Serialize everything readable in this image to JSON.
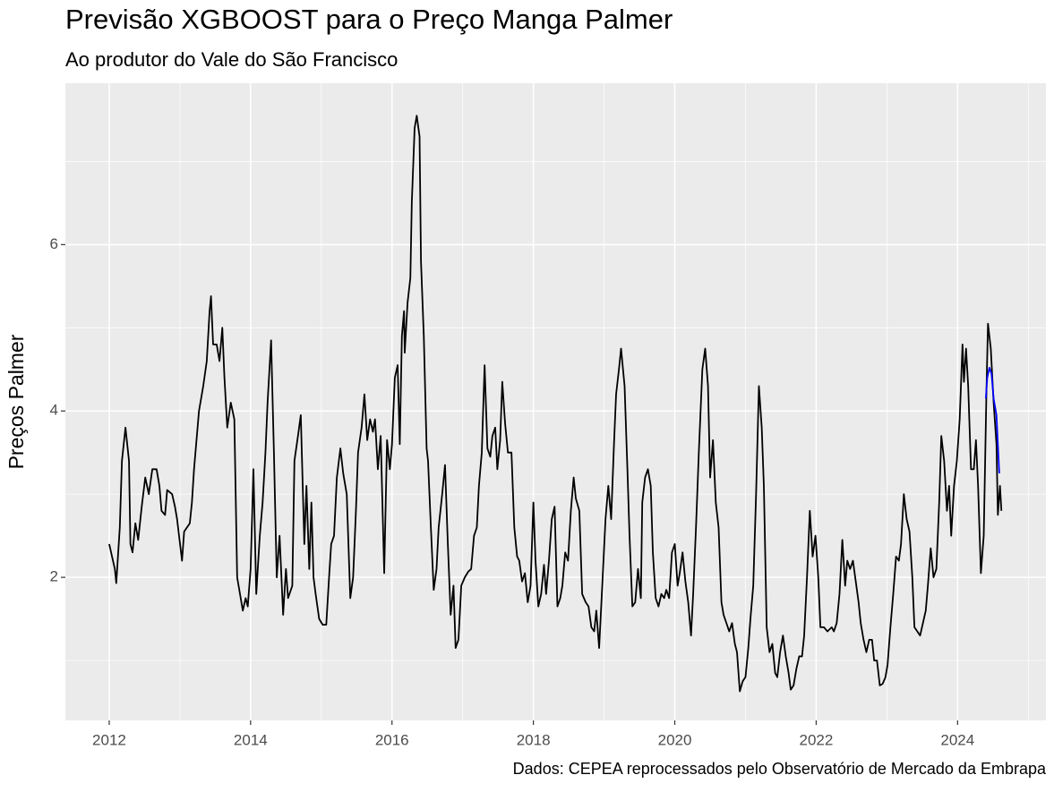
{
  "chart_data": {
    "type": "line",
    "title": "Previsão XGBOOST para o Preço Manga Palmer",
    "subtitle": "Ao produtor do Vale do São Francisco",
    "y_label": "Preços Palmer",
    "caption": "Dados: CEPEA reprocessados pelo Observatório de Mercado da Embrapa",
    "xlim": [
      2011.38,
      2025.25
    ],
    "ylim": [
      0.28,
      7.94
    ],
    "xticks": [
      2012,
      2014,
      2016,
      2018,
      2020,
      2022,
      2024
    ],
    "yticks": [
      2,
      4,
      6
    ],
    "x_minor_ticks": [
      2013,
      2015,
      2017,
      2019,
      2021,
      2023,
      2025
    ],
    "y_minor_ticks": [
      1,
      3,
      5,
      7
    ],
    "grid": true,
    "series": [
      {
        "color": "#000000",
        "x": [
          2012.0,
          2012.08,
          2012.1,
          2012.15,
          2012.18,
          2012.23,
          2012.28,
          2012.3,
          2012.33,
          2012.37,
          2012.41,
          2012.46,
          2012.51,
          2012.56,
          2012.61,
          2012.67,
          2012.71,
          2012.74,
          2012.79,
          2012.82,
          2012.89,
          2012.93,
          2012.96,
          2013.03,
          2013.06,
          2013.14,
          2013.17,
          2013.2,
          2013.27,
          2013.33,
          2013.38,
          2013.42,
          2013.44,
          2013.47,
          2013.52,
          2013.56,
          2013.6,
          2013.63,
          2013.67,
          2013.72,
          2013.77,
          2013.81,
          2013.85,
          2013.89,
          2013.93,
          2013.96,
          2014.0,
          2014.04,
          2014.08,
          2014.13,
          2014.17,
          2014.21,
          2014.24,
          2014.29,
          2014.33,
          2014.37,
          2014.41,
          2014.46,
          2014.5,
          2014.53,
          2014.59,
          2014.62,
          2014.67,
          2014.71,
          2014.76,
          2014.79,
          2014.83,
          2014.86,
          2014.89,
          2014.92,
          2014.97,
          2015.02,
          2015.07,
          2015.11,
          2015.14,
          2015.18,
          2015.22,
          2015.27,
          2015.31,
          2015.36,
          2015.41,
          2015.45,
          2015.49,
          2015.52,
          2015.57,
          2015.61,
          2015.65,
          2015.69,
          2015.73,
          2015.76,
          2015.8,
          2015.84,
          2015.89,
          2015.93,
          2015.97,
          2016.0,
          2016.04,
          2016.08,
          2016.11,
          2016.14,
          2016.17,
          2016.18,
          2016.22,
          2016.26,
          2016.28,
          2016.32,
          2016.35,
          2016.39,
          2016.41,
          2016.45,
          2016.49,
          2016.51,
          2016.55,
          2016.59,
          2016.63,
          2016.66,
          2016.71,
          2016.75,
          2016.79,
          2016.83,
          2016.87,
          2016.9,
          2016.94,
          2016.98,
          2017.03,
          2017.08,
          2017.12,
          2017.16,
          2017.2,
          2017.23,
          2017.27,
          2017.31,
          2017.35,
          2017.39,
          2017.42,
          2017.46,
          2017.49,
          2017.53,
          2017.56,
          2017.6,
          2017.64,
          2017.69,
          2017.73,
          2017.77,
          2017.8,
          2017.84,
          2017.88,
          2017.92,
          2017.96,
          2018.0,
          2018.03,
          2018.07,
          2018.11,
          2018.15,
          2018.18,
          2018.22,
          2018.26,
          2018.3,
          2018.34,
          2018.38,
          2018.41,
          2018.45,
          2018.49,
          2018.53,
          2018.57,
          2018.6,
          2018.65,
          2018.69,
          2018.74,
          2018.78,
          2018.82,
          2018.86,
          2018.89,
          2018.93,
          2018.98,
          2019.02,
          2019.06,
          2019.1,
          2019.14,
          2019.17,
          2019.21,
          2019.24,
          2019.29,
          2019.33,
          2019.36,
          2019.4,
          2019.44,
          2019.48,
          2019.52,
          2019.54,
          2019.58,
          2019.62,
          2019.66,
          2019.69,
          2019.73,
          2019.77,
          2019.81,
          2019.85,
          2019.88,
          2019.92,
          2019.96,
          2020.0,
          2020.04,
          2020.07,
          2020.11,
          2020.15,
          2020.19,
          2020.23,
          2020.26,
          2020.3,
          2020.34,
          2020.39,
          2020.43,
          2020.47,
          2020.5,
          2020.54,
          2020.58,
          2020.62,
          2020.66,
          2020.69,
          2020.73,
          2020.77,
          2020.81,
          2020.85,
          2020.88,
          2020.92,
          2020.96,
          2021.0,
          2021.04,
          2021.07,
          2021.11,
          2021.15,
          2021.19,
          2021.23,
          2021.26,
          2021.3,
          2021.34,
          2021.38,
          2021.42,
          2021.45,
          2021.49,
          2021.53,
          2021.57,
          2021.61,
          2021.64,
          2021.68,
          2021.72,
          2021.76,
          2021.8,
          2021.83,
          2021.87,
          2021.91,
          2021.95,
          2021.99,
          2022.03,
          2022.06,
          2022.11,
          2022.16,
          2022.22,
          2022.25,
          2022.29,
          2022.33,
          2022.37,
          2022.41,
          2022.44,
          2022.48,
          2022.52,
          2022.56,
          2022.6,
          2022.63,
          2022.67,
          2022.71,
          2022.75,
          2022.79,
          2022.82,
          2022.86,
          2022.9,
          2022.94,
          2022.98,
          2023.01,
          2023.05,
          2023.09,
          2023.13,
          2023.17,
          2023.2,
          2023.24,
          2023.28,
          2023.32,
          2023.36,
          2023.39,
          2023.43,
          2023.47,
          2023.51,
          2023.55,
          2023.58,
          2023.62,
          2023.66,
          2023.7,
          2023.74,
          2023.77,
          2023.81,
          2023.85,
          2023.88,
          2023.91,
          2023.95,
          2023.99,
          2024.03,
          2024.07,
          2024.09,
          2024.12,
          2024.15,
          2024.19,
          2024.23,
          2024.26,
          2024.29,
          2024.33,
          2024.37,
          2024.41,
          2024.43,
          2024.47,
          2024.51,
          2024.55,
          2024.57,
          2024.6,
          2024.62
        ],
        "values": [
          2.4,
          2.1,
          1.93,
          2.6,
          3.4,
          3.8,
          3.4,
          2.4,
          2.3,
          2.65,
          2.45,
          2.85,
          3.2,
          3.0,
          3.3,
          3.3,
          3.1,
          2.8,
          2.75,
          3.05,
          3.0,
          2.85,
          2.7,
          2.2,
          2.55,
          2.65,
          2.9,
          3.3,
          4.0,
          4.3,
          4.6,
          5.2,
          5.38,
          4.8,
          4.8,
          4.6,
          5.0,
          4.4,
          3.8,
          4.1,
          3.9,
          2.0,
          1.8,
          1.6,
          1.75,
          1.65,
          2.1,
          3.3,
          1.8,
          2.5,
          2.9,
          3.5,
          4.1,
          4.85,
          3.5,
          2.0,
          2.5,
          1.55,
          2.1,
          1.75,
          1.9,
          3.4,
          3.7,
          3.95,
          2.4,
          3.1,
          2.1,
          2.9,
          2.0,
          1.8,
          1.5,
          1.43,
          1.43,
          2.0,
          2.4,
          2.5,
          3.2,
          3.55,
          3.25,
          3.0,
          1.75,
          2.0,
          2.8,
          3.5,
          3.8,
          4.2,
          3.65,
          3.9,
          3.75,
          3.9,
          3.3,
          3.7,
          2.05,
          3.65,
          3.3,
          3.6,
          4.4,
          4.55,
          3.6,
          4.9,
          5.2,
          4.7,
          5.3,
          5.6,
          6.5,
          7.4,
          7.55,
          7.3,
          5.8,
          4.9,
          3.55,
          3.4,
          2.6,
          1.85,
          2.1,
          2.6,
          3.0,
          3.35,
          2.4,
          1.55,
          1.9,
          1.15,
          1.25,
          1.9,
          2.0,
          2.07,
          2.1,
          2.5,
          2.6,
          3.1,
          3.5,
          4.55,
          3.55,
          3.45,
          3.7,
          3.8,
          3.3,
          3.65,
          4.35,
          3.85,
          3.5,
          3.5,
          2.6,
          2.25,
          2.2,
          1.95,
          2.05,
          1.7,
          1.9,
          2.9,
          2.2,
          1.65,
          1.8,
          2.15,
          1.8,
          2.2,
          2.7,
          2.85,
          1.65,
          1.75,
          1.9,
          2.3,
          2.2,
          2.8,
          3.2,
          2.95,
          2.8,
          1.8,
          1.7,
          1.65,
          1.4,
          1.35,
          1.6,
          1.15,
          2.0,
          2.7,
          3.1,
          2.7,
          3.6,
          4.2,
          4.5,
          4.75,
          4.3,
          3.3,
          2.5,
          1.65,
          1.7,
          2.1,
          1.75,
          2.9,
          3.2,
          3.3,
          3.1,
          2.3,
          1.75,
          1.65,
          1.8,
          1.75,
          1.85,
          1.75,
          2.3,
          2.4,
          1.9,
          2.05,
          2.3,
          1.95,
          1.7,
          1.3,
          1.8,
          2.6,
          3.5,
          4.5,
          4.75,
          4.3,
          3.2,
          3.65,
          2.9,
          2.6,
          1.7,
          1.55,
          1.45,
          1.35,
          1.45,
          1.2,
          1.1,
          0.63,
          0.75,
          0.8,
          1.15,
          1.5,
          1.9,
          3.0,
          4.3,
          3.8,
          3.1,
          1.4,
          1.1,
          1.2,
          0.85,
          0.8,
          1.1,
          1.3,
          1.05,
          0.85,
          0.65,
          0.7,
          0.9,
          1.05,
          1.05,
          1.3,
          2.0,
          2.8,
          2.25,
          2.5,
          2.0,
          1.4,
          1.4,
          1.35,
          1.4,
          1.35,
          1.45,
          1.8,
          2.45,
          1.9,
          2.2,
          2.1,
          2.2,
          1.95,
          1.7,
          1.45,
          1.25,
          1.1,
          1.25,
          1.25,
          1.0,
          1.0,
          0.7,
          0.72,
          0.8,
          0.95,
          1.4,
          1.8,
          2.25,
          2.2,
          2.4,
          3.0,
          2.7,
          2.55,
          2.0,
          1.4,
          1.35,
          1.3,
          1.45,
          1.6,
          1.9,
          2.35,
          2.0,
          2.1,
          2.9,
          3.7,
          3.4,
          2.8,
          3.1,
          2.5,
          3.1,
          3.4,
          3.9,
          4.8,
          4.35,
          4.75,
          4.3,
          3.3,
          3.3,
          3.65,
          3.1,
          2.05,
          2.5,
          4.3,
          5.05,
          4.75,
          4.1,
          3.6,
          2.75,
          3.1,
          2.8
        ]
      },
      {
        "color": "#0000ff",
        "x": [
          2024.4,
          2024.42,
          2024.45,
          2024.48,
          2024.51,
          2024.55,
          2024.59
        ],
        "values": [
          4.15,
          4.4,
          4.52,
          4.45,
          4.15,
          3.95,
          3.25
        ]
      }
    ]
  }
}
